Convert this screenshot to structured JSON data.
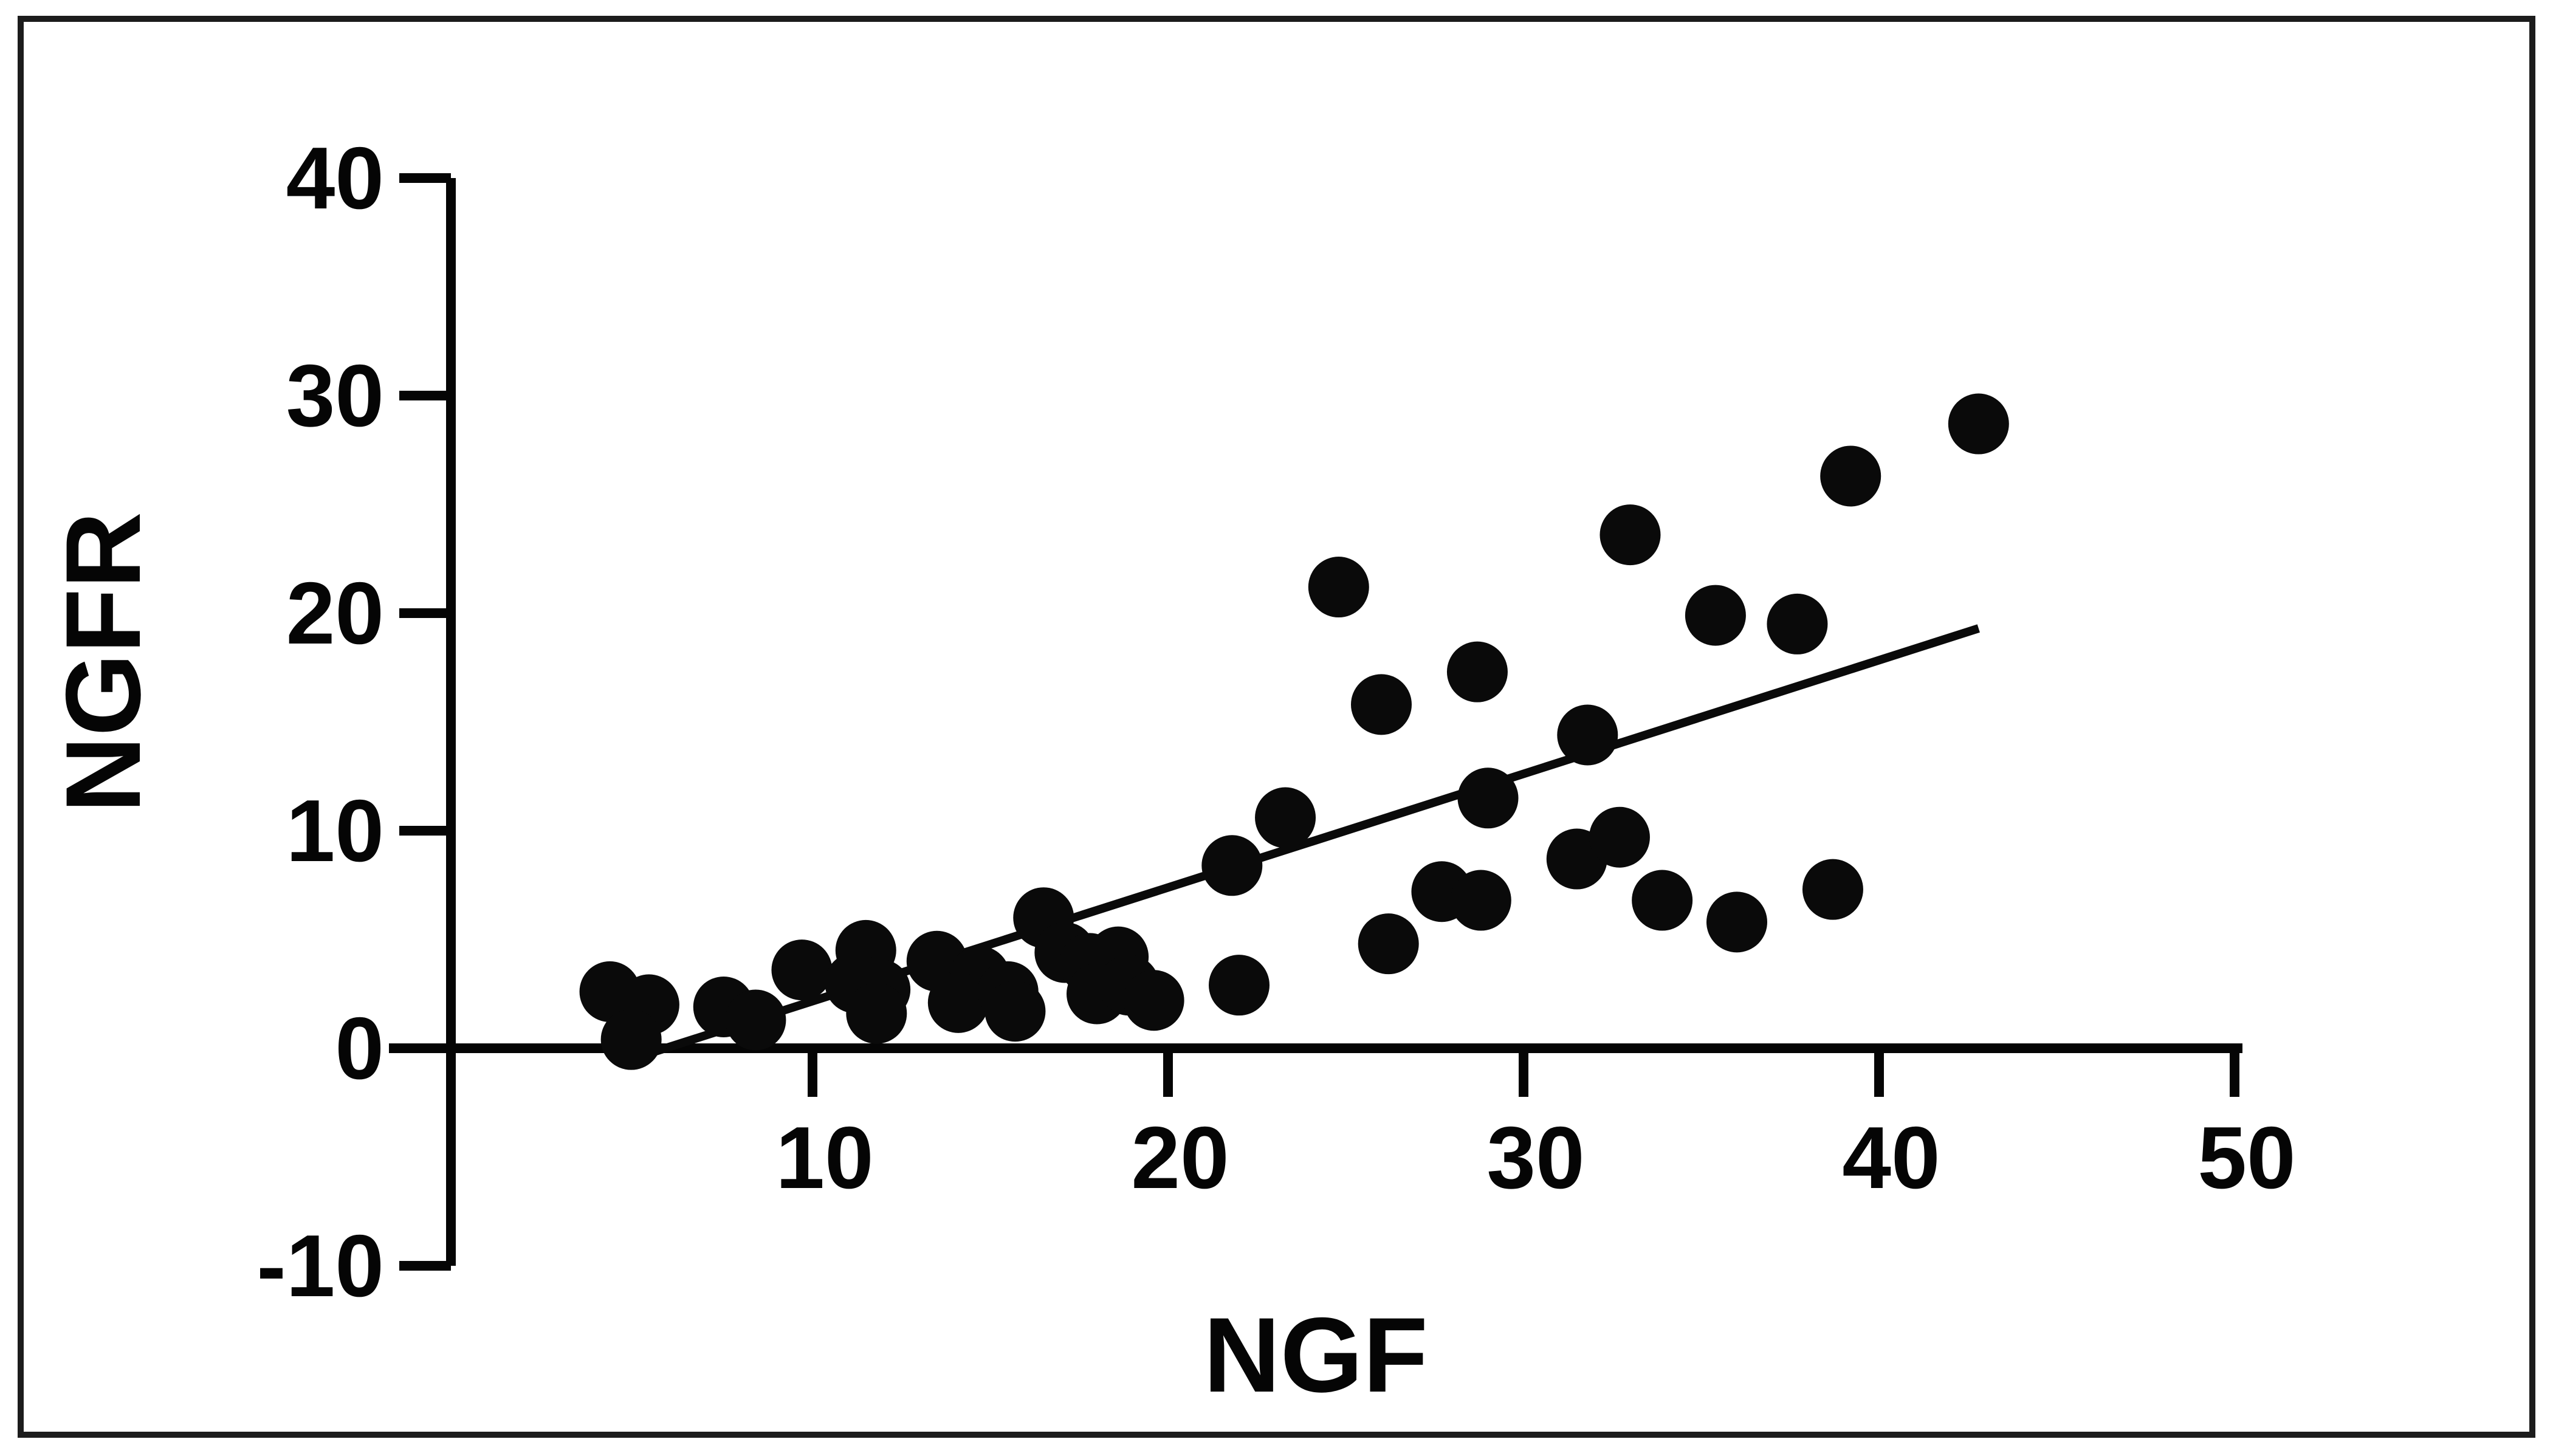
{
  "figure": {
    "background_color": "#ffffff",
    "border_color": "#1c1c1c",
    "axis_color": "#050505",
    "marker_color": "#0a0a0a",
    "trend_color": "#0a0a0a"
  },
  "chart_data": {
    "type": "scatter",
    "title": "",
    "xlabel": "NGF",
    "ylabel": "NGFR",
    "xlim": [
      0,
      50
    ],
    "ylim": [
      -10,
      40
    ],
    "x_ticks": [
      10,
      20,
      30,
      40,
      50
    ],
    "y_ticks": [
      40,
      30,
      20,
      10,
      0,
      -10
    ],
    "grid": false,
    "legend_position": "none",
    "points": [
      [
        4.3,
        2.6
      ],
      [
        5.4,
        2.0
      ],
      [
        4.9,
        0.4
      ],
      [
        7.5,
        1.9
      ],
      [
        8.4,
        1.3
      ],
      [
        9.7,
        3.6
      ],
      [
        11.5,
        4.5
      ],
      [
        11.2,
        3.0
      ],
      [
        11.9,
        2.7
      ],
      [
        11.8,
        1.6
      ],
      [
        13.5,
        4.0
      ],
      [
        14.7,
        3.3
      ],
      [
        14.1,
        2.1
      ],
      [
        15.5,
        2.6
      ],
      [
        15.7,
        1.7
      ],
      [
        16.5,
        6.0
      ],
      [
        17.1,
        4.4
      ],
      [
        17.8,
        3.9
      ],
      [
        18.6,
        4.2
      ],
      [
        18.0,
        2.5
      ],
      [
        18.9,
        2.9
      ],
      [
        19.6,
        2.2
      ],
      [
        21.8,
        8.4
      ],
      [
        22.0,
        2.9
      ],
      [
        23.3,
        10.6
      ],
      [
        24.8,
        21.2
      ],
      [
        26.0,
        15.8
      ],
      [
        26.2,
        4.8
      ],
      [
        27.7,
        7.2
      ],
      [
        28.8,
        6.8
      ],
      [
        28.7,
        17.3
      ],
      [
        29.0,
        11.5
      ],
      [
        31.5,
        8.7
      ],
      [
        32.7,
        9.7
      ],
      [
        31.8,
        14.4
      ],
      [
        33.0,
        23.6
      ],
      [
        33.9,
        6.8
      ],
      [
        35.4,
        19.9
      ],
      [
        36.0,
        5.8
      ],
      [
        37.7,
        19.5
      ],
      [
        38.7,
        7.3
      ],
      [
        39.2,
        26.3
      ],
      [
        42.8,
        28.7
      ]
    ],
    "trendline": {
      "x1": 4.9,
      "y1": -0.5,
      "x2": 42.8,
      "y2": 19.3
    }
  }
}
